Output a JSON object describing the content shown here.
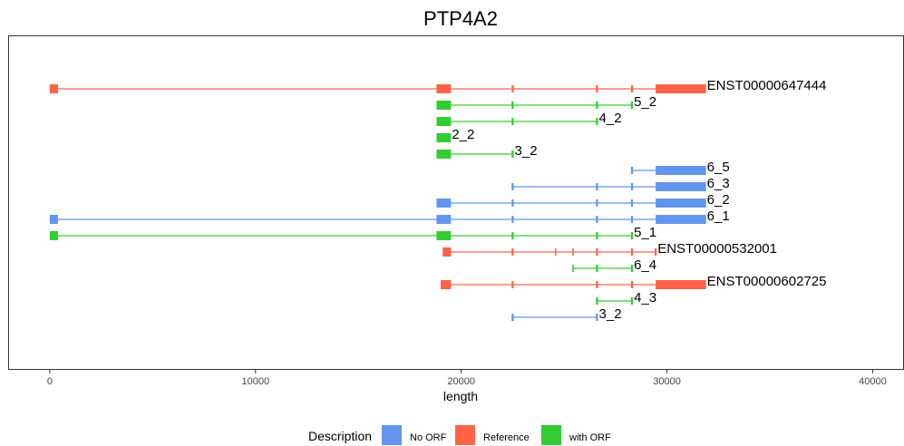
{
  "chart_data": {
    "type": "gene-structure",
    "title": "PTP4A2",
    "xlabel": "length",
    "xlim": [
      -2000,
      41500
    ],
    "x_ticks": [
      0,
      10000,
      20000,
      30000,
      40000
    ],
    "x_tick_labels": [
      "0",
      "10000",
      "20000",
      "30000",
      "40000"
    ],
    "grid": false,
    "legend": {
      "title": "Description",
      "position": "bottom",
      "entries": [
        {
          "label": "No ORF",
          "color": "#6495ED"
        },
        {
          "label": "Reference",
          "color": "#FF6347"
        },
        {
          "label": "with ORF",
          "color": "#32CD32"
        }
      ]
    },
    "colors": {
      "No ORF": "#6495ED",
      "Reference": "#FF6347",
      "with ORF": "#32CD32"
    },
    "transcripts": [
      {
        "name": "ENST00000647444",
        "type": "Reference",
        "start": 0,
        "end": 31900,
        "exons": [
          [
            0,
            400
          ],
          [
            18800,
            19500
          ],
          [
            22450,
            22550
          ],
          [
            26550,
            26650
          ],
          [
            28250,
            28350
          ],
          [
            29450,
            31900
          ]
        ]
      },
      {
        "name": "5_2",
        "type": "with ORF",
        "start": 18800,
        "end": 28350,
        "exons": [
          [
            18800,
            19500
          ],
          [
            22450,
            22550
          ],
          [
            26550,
            26650
          ],
          [
            28250,
            28350
          ]
        ]
      },
      {
        "name": "4_2",
        "type": "with ORF",
        "start": 18800,
        "end": 26650,
        "exons": [
          [
            18800,
            19500
          ],
          [
            22450,
            22550
          ],
          [
            26550,
            26650
          ]
        ]
      },
      {
        "name": "2_2",
        "type": "with ORF",
        "start": 18800,
        "end": 19500,
        "exons": [
          [
            18800,
            19500
          ]
        ]
      },
      {
        "name": "3_2",
        "type": "with ORF",
        "start": 18800,
        "end": 22550,
        "exons": [
          [
            18800,
            19500
          ],
          [
            22450,
            22550
          ]
        ]
      },
      {
        "name": "6_5",
        "type": "No ORF",
        "start": 28250,
        "end": 31900,
        "exons": [
          [
            28250,
            28350
          ],
          [
            29450,
            31900
          ]
        ]
      },
      {
        "name": "6_3",
        "type": "No ORF",
        "start": 22450,
        "end": 31900,
        "exons": [
          [
            22450,
            22550
          ],
          [
            26550,
            26650
          ],
          [
            28250,
            28350
          ],
          [
            29450,
            31900
          ]
        ]
      },
      {
        "name": "6_2",
        "type": "No ORF",
        "start": 18800,
        "end": 31900,
        "exons": [
          [
            18800,
            19500
          ],
          [
            22450,
            22550
          ],
          [
            26550,
            26650
          ],
          [
            28250,
            28350
          ],
          [
            29450,
            31900
          ]
        ]
      },
      {
        "name": "6_1",
        "type": "No ORF",
        "start": 0,
        "end": 31900,
        "exons": [
          [
            0,
            400
          ],
          [
            18800,
            19500
          ],
          [
            22450,
            22550
          ],
          [
            26550,
            26650
          ],
          [
            28250,
            28350
          ],
          [
            29450,
            31900
          ]
        ]
      },
      {
        "name": "5_1",
        "type": "with ORF",
        "start": 0,
        "end": 28350,
        "exons": [
          [
            0,
            400
          ],
          [
            18800,
            19500
          ],
          [
            22450,
            22550
          ],
          [
            26550,
            26650
          ],
          [
            28250,
            28350
          ]
        ]
      },
      {
        "name": "ENST00000532001",
        "type": "Reference",
        "start": 19100,
        "end": 29500,
        "exons": [
          [
            19100,
            19500
          ],
          [
            22450,
            22550
          ],
          [
            24550,
            24600
          ],
          [
            25400,
            25450
          ],
          [
            26550,
            26650
          ],
          [
            28250,
            28350
          ],
          [
            29400,
            29500
          ]
        ]
      },
      {
        "name": "6_4",
        "type": "with ORF",
        "start": 25400,
        "end": 28350,
        "exons": [
          [
            25400,
            25450
          ],
          [
            26550,
            26650
          ],
          [
            28250,
            28350
          ]
        ]
      },
      {
        "name": "ENST00000602725",
        "type": "Reference",
        "start": 19000,
        "end": 31900,
        "exons": [
          [
            19000,
            19500
          ],
          [
            22450,
            22550
          ],
          [
            26550,
            26650
          ],
          [
            28250,
            28350
          ],
          [
            29450,
            31900
          ]
        ]
      },
      {
        "name": "4_3",
        "type": "with ORF",
        "start": 26550,
        "end": 28350,
        "exons": [
          [
            26550,
            26650
          ],
          [
            28250,
            28350
          ]
        ]
      },
      {
        "name": "3_2",
        "type": "No ORF",
        "start": 22450,
        "end": 26650,
        "exons": [
          [
            22450,
            22550
          ],
          [
            26550,
            26650
          ]
        ]
      }
    ]
  }
}
